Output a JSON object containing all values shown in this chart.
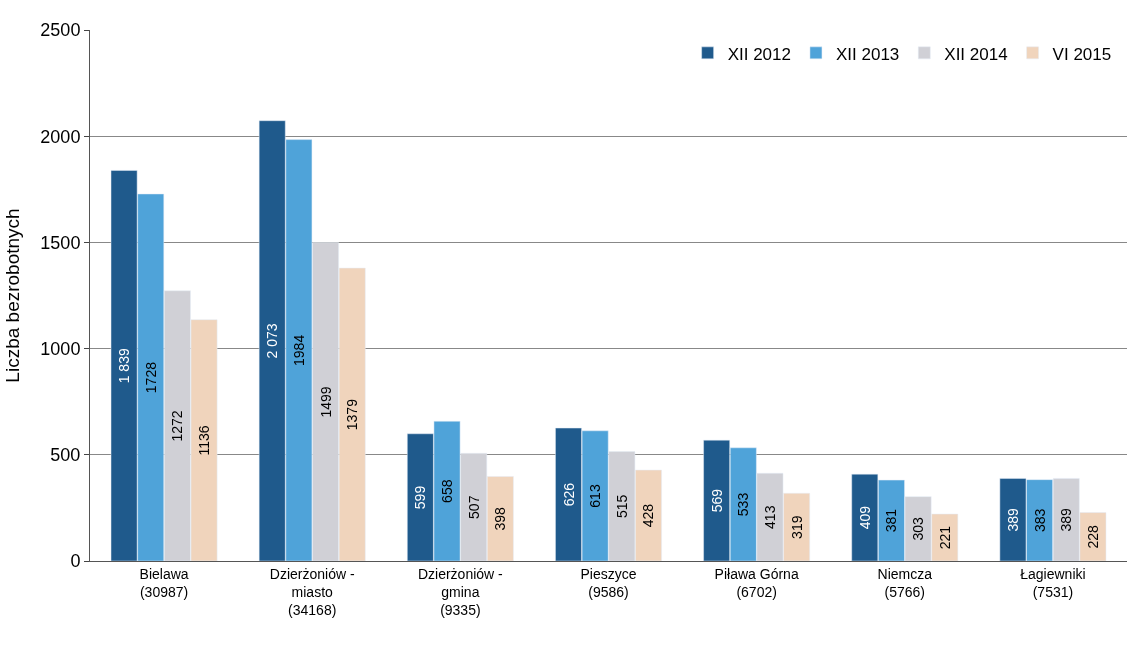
{
  "chart_data": {
    "type": "bar",
    "ylabel": "Liczba bezrobotnych",
    "categories": [
      "Bielawa\n(30987)",
      "Dzierżoniów -\nmiasto\n(34168)",
      "Dzierżoniów -\ngmina\n(9335)",
      "Pieszyce\n(9586)",
      "Piława Górna\n(6702)",
      "Niemcza\n(5766)",
      "Łagiewniki\n(7531)"
    ],
    "series": [
      {
        "name": "XII 2012",
        "color": "#1f5a8c",
        "values": [
          1839,
          2073,
          599,
          626,
          569,
          409,
          389
        ],
        "value_labels": [
          "1 839",
          "2 073",
          "599",
          "626",
          "569",
          "409",
          "389"
        ]
      },
      {
        "name": "XII 2013",
        "color": "#4fa3d9",
        "values": [
          1728,
          1984,
          658,
          613,
          533,
          381,
          383
        ],
        "value_labels": [
          "1728",
          "1984",
          "658",
          "613",
          "533",
          "381",
          "383"
        ]
      },
      {
        "name": "XII 2014",
        "color": "#d0d0d6",
        "values": [
          1272,
          1499,
          507,
          515,
          413,
          303,
          389
        ],
        "value_labels": [
          "1272",
          "1499",
          "507",
          "515",
          "413",
          "303",
          "389"
        ]
      },
      {
        "name": "VI 2015",
        "color": "#f0d4bc",
        "values": [
          1136,
          1379,
          398,
          428,
          319,
          221,
          228
        ],
        "value_labels": [
          "1136",
          "1379",
          "398",
          "428",
          "319",
          "221",
          "228"
        ]
      }
    ],
    "ylim": [
      0,
      2500
    ],
    "yticks": [
      0,
      500,
      1000,
      1500,
      2000,
      2500
    ],
    "grid": "y",
    "legend": "top right"
  }
}
